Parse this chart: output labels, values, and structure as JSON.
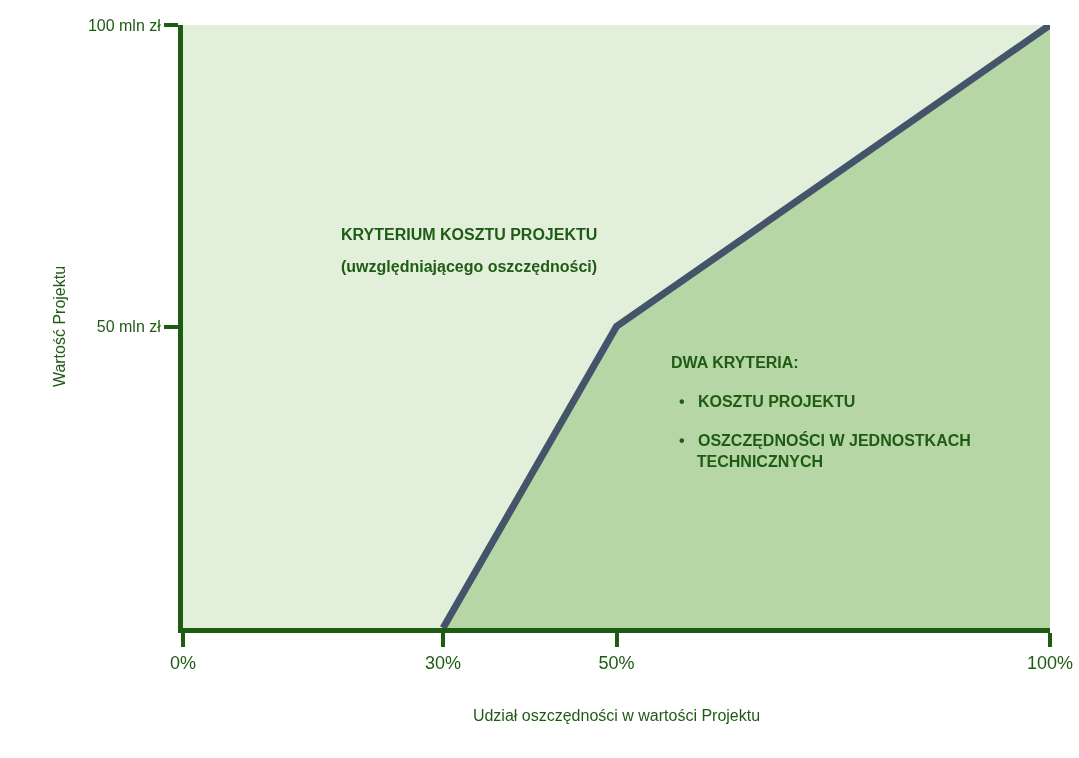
{
  "chart_data": {
    "type": "area",
    "xlabel": "Udział oszczędności w wartości Projektu",
    "ylabel": "Wartość Projektu",
    "x": [
      30,
      50,
      100
    ],
    "series": [
      {
        "color": "#44546a",
        "values": [
          0,
          50,
          100
        ]
      }
    ],
    "xlim": [
      0,
      100
    ],
    "ylim": [
      0,
      100
    ],
    "xticks": [
      {
        "value": 0,
        "label": "0%"
      },
      {
        "value": 30,
        "label": "30%"
      },
      {
        "value": 50,
        "label": "50%"
      },
      {
        "value": 100,
        "label": "100%"
      }
    ],
    "yticks": [
      {
        "value": 50,
        "label": "50 mln zł"
      },
      {
        "value": 100,
        "label": "100 mln zł"
      }
    ],
    "grid": false,
    "legend": false,
    "annotations": [
      "KRYTERIUM KOSZTU PROJEKTU",
      "(uwzględniającego oszczędności)",
      "DWA KRYTERIA:",
      "•   KOSZTU PROJEKTU",
      "•   OSZCZĘDNOŚCI W JEDNOSTKACH TECHNICZNYCH"
    ]
  }
}
